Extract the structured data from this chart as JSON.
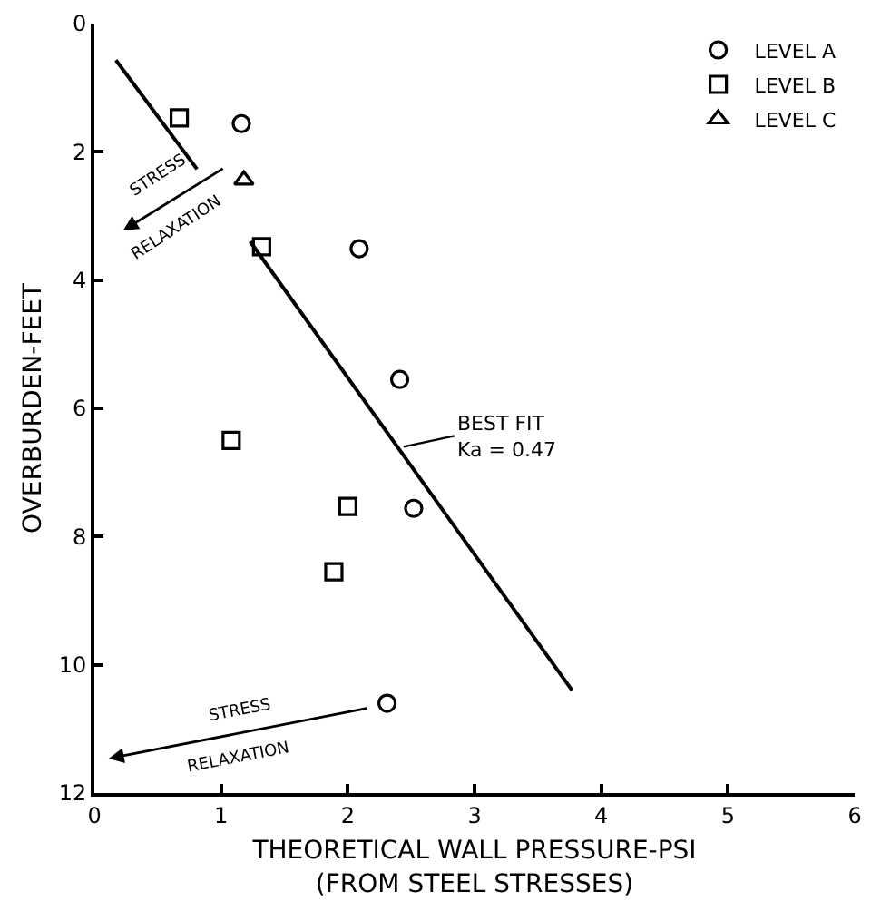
{
  "chart_data": {
    "type": "scatter",
    "xlabel": "THEORETICAL WALL PRESSURE-PSI\n(FROM STEEL STRESSES)",
    "ylabel": "OVERBURDEN-FEET",
    "xlim": [
      0,
      6
    ],
    "xticks": [
      0,
      1,
      2,
      3,
      4,
      5,
      6
    ],
    "ylim": [
      12,
      0
    ],
    "yticks": [
      0,
      2,
      4,
      6,
      8,
      10,
      12
    ],
    "legend": "top right",
    "series": [
      {
        "name": "LEVEL A",
        "color": "#000000",
        "marker": "circle",
        "x": [
          1.16,
          2.09,
          2.41,
          2.52,
          2.31
        ],
        "values": [
          1.56,
          3.51,
          5.55,
          7.56,
          10.6
        ]
      },
      {
        "name": "LEVEL B",
        "color": "#000000",
        "marker": "square",
        "x": [
          0.67,
          1.32,
          1.08,
          2.0,
          1.89
        ],
        "values": [
          1.47,
          3.48,
          6.5,
          7.53,
          8.55
        ]
      },
      {
        "name": "LEVEL C",
        "color": "#000000",
        "marker": "triangle",
        "x": [
          1.18
        ],
        "values": [
          2.44
        ]
      },
      {
        "type": "line",
        "color": "#000000",
        "marker": "none",
        "line_style": "solid",
        "x": [
          0.17,
          0.81,
          1.0,
          1.23,
          3.77
        ],
        "values": [
          0.57,
          2.27,
          null,
          3.4,
          10.4
        ]
      }
    ],
    "annotations": [
      {
        "text": "BEST FIT\nKa = 0.47",
        "x": 2.44,
        "y": 6.6
      },
      "STRESS\nRELAXATION",
      "STRESS\nRELAXATION"
    ]
  }
}
